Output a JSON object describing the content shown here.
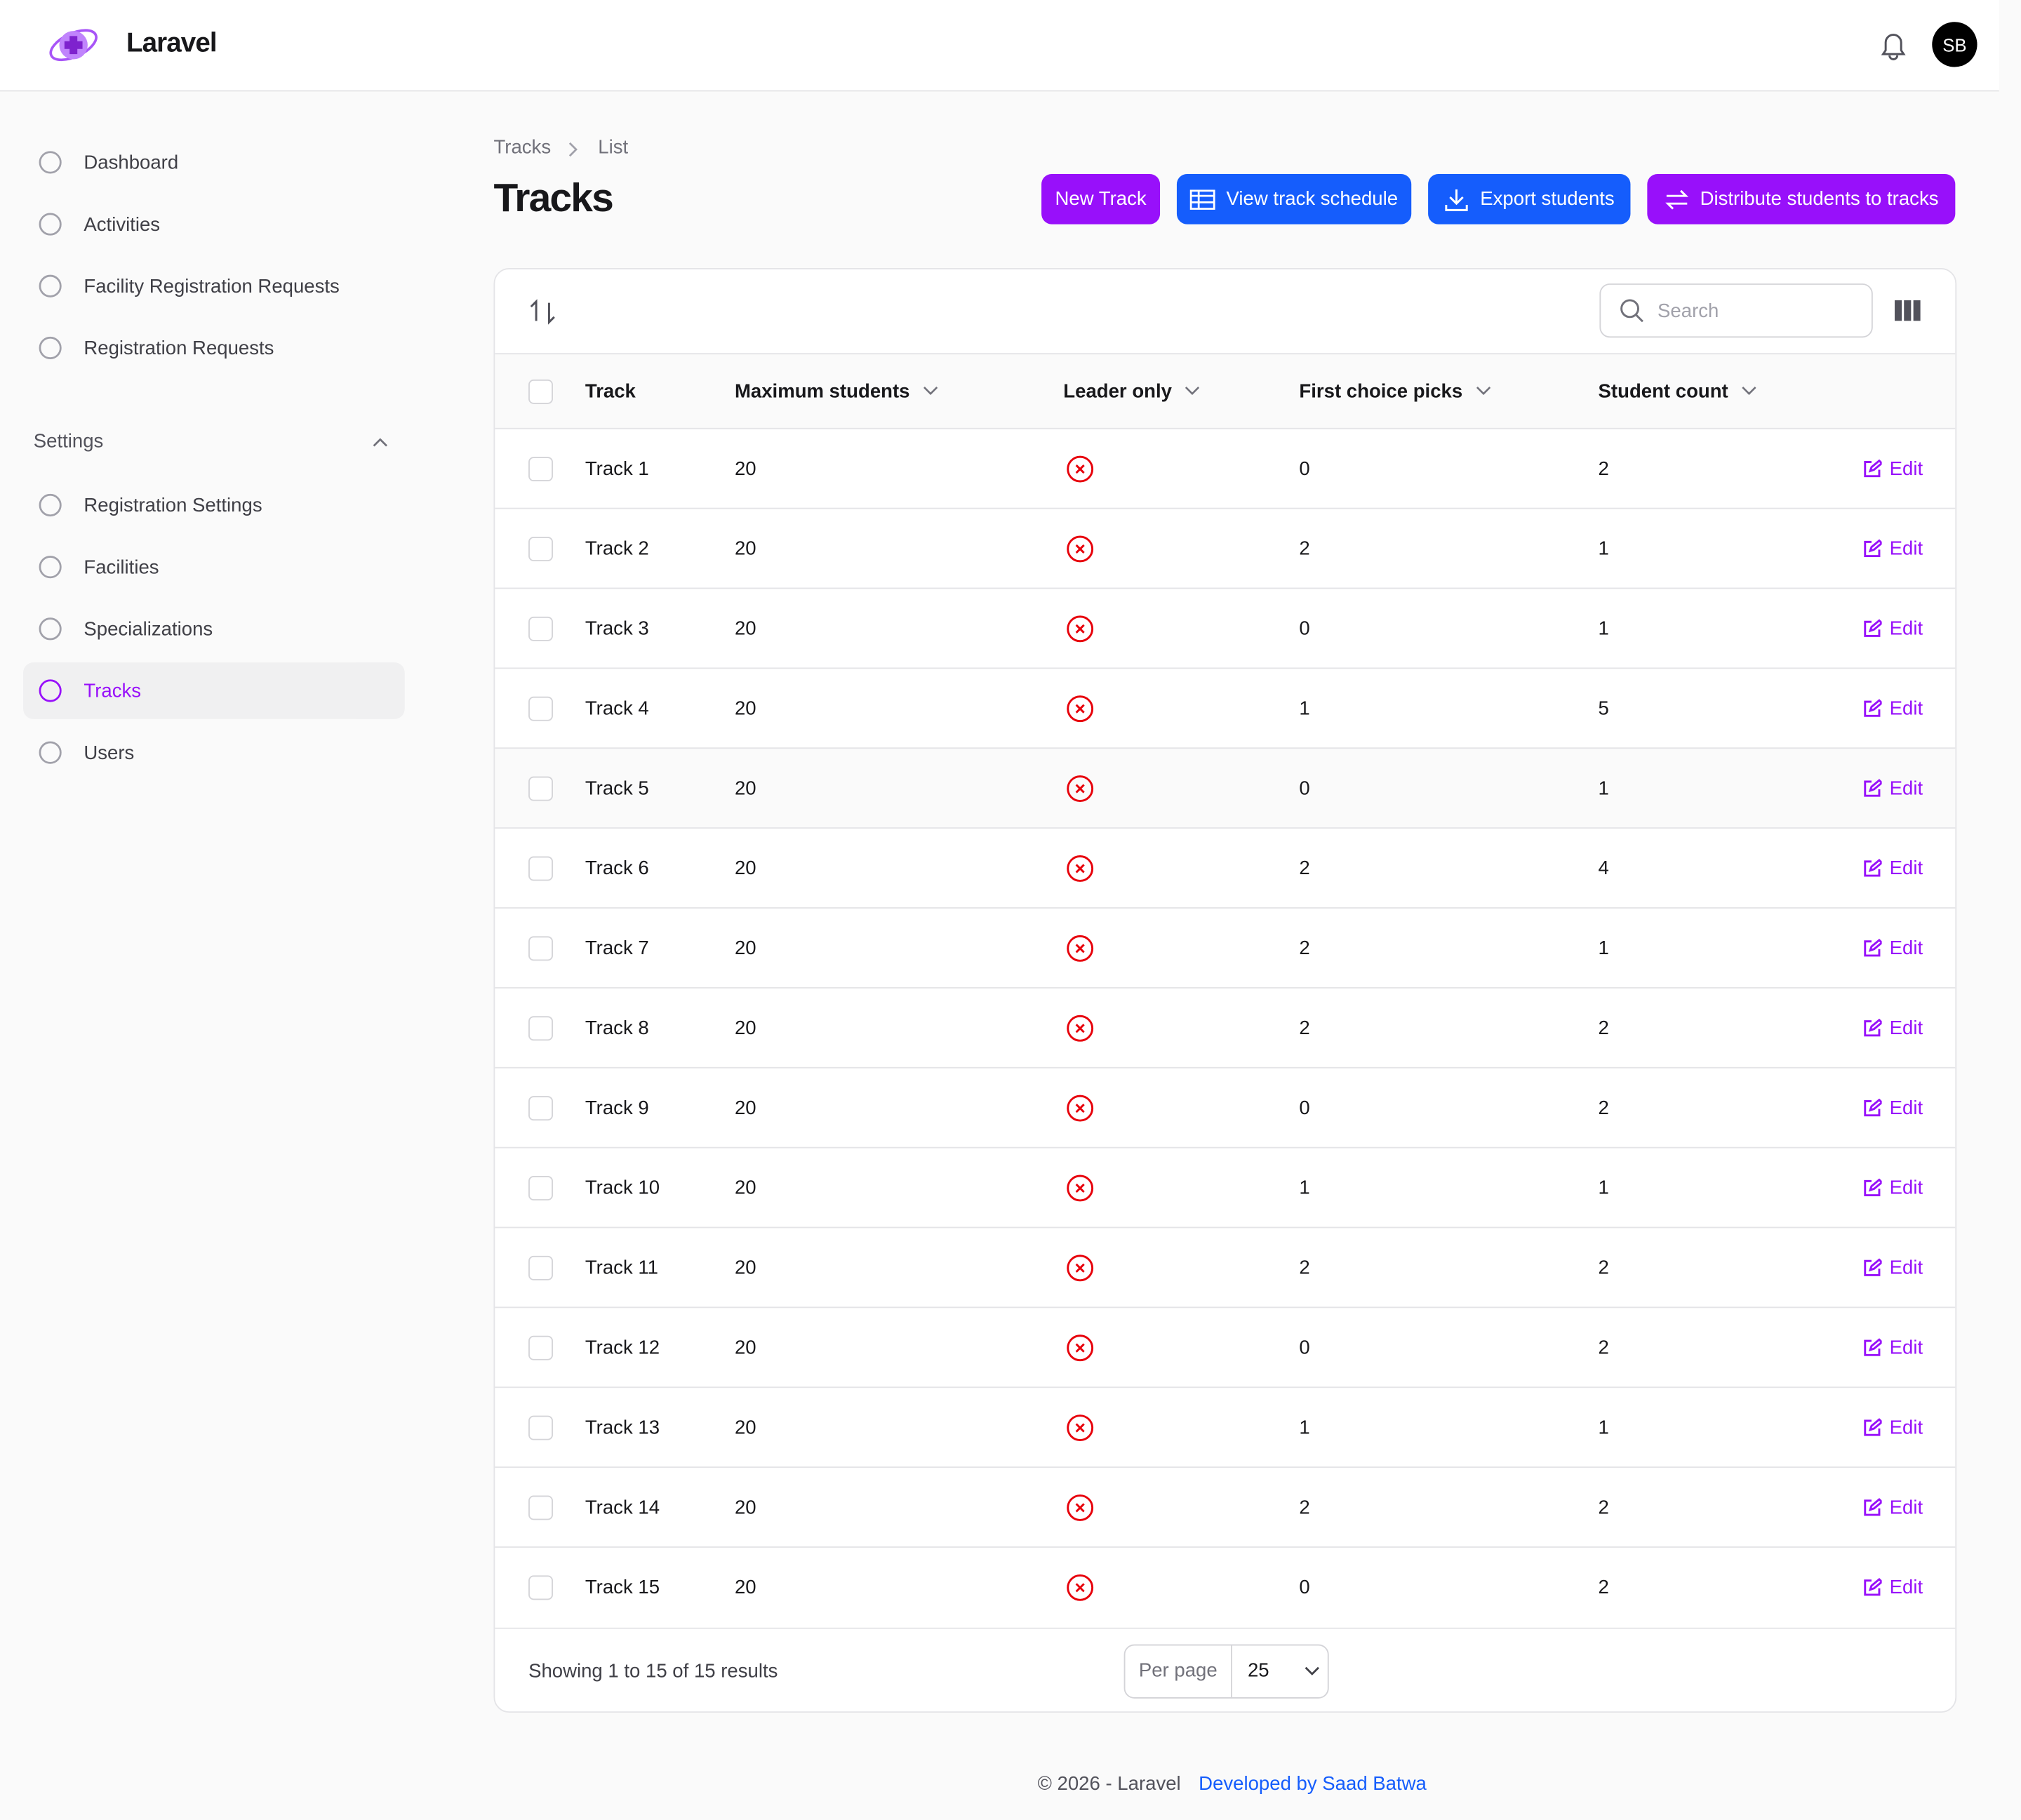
{
  "header": {
    "brand": "Laravel",
    "avatar": "SB"
  },
  "sidebar": {
    "items": [
      "Dashboard",
      "Activities",
      "Facility Registration Requests",
      "Registration Requests"
    ],
    "group_label": "Settings",
    "group_items": [
      "Registration Settings",
      "Facilities",
      "Specializations",
      "Tracks",
      "Users"
    ],
    "active": "Tracks"
  },
  "breadcrumb": [
    "Tracks",
    "List"
  ],
  "page_title": "Tracks",
  "actions": [
    "New Track",
    "View track schedule",
    "Export students",
    "Distribute students to tracks"
  ],
  "table": {
    "search_placeholder": "Search",
    "columns": [
      "Track",
      "Maximum students",
      "Leader only",
      "First choice picks",
      "Student count"
    ],
    "edit_label": "Edit",
    "rows": [
      [
        "Track 1",
        20,
        false,
        0,
        2
      ],
      [
        "Track 2",
        20,
        false,
        2,
        1
      ],
      [
        "Track 3",
        20,
        false,
        0,
        1
      ],
      [
        "Track 4",
        20,
        false,
        1,
        5
      ],
      [
        "Track 5",
        20,
        false,
        0,
        1
      ],
      [
        "Track 6",
        20,
        false,
        2,
        4
      ],
      [
        "Track 7",
        20,
        false,
        2,
        1
      ],
      [
        "Track 8",
        20,
        false,
        2,
        2
      ],
      [
        "Track 9",
        20,
        false,
        0,
        2
      ],
      [
        "Track 10",
        20,
        false,
        1,
        1
      ],
      [
        "Track 11",
        20,
        false,
        2,
        2
      ],
      [
        "Track 12",
        20,
        false,
        0,
        2
      ],
      [
        "Track 13",
        20,
        false,
        1,
        1
      ],
      [
        "Track 14",
        20,
        false,
        2,
        2
      ],
      [
        "Track 15",
        20,
        false,
        0,
        2
      ]
    ],
    "summary": "Showing 1 to 15 of 15 results",
    "per_page_label": "Per page",
    "per_page": 25
  },
  "footer": {
    "copyright": "© 2026 - Laravel",
    "credit": "Developed by Saad Batwa"
  }
}
